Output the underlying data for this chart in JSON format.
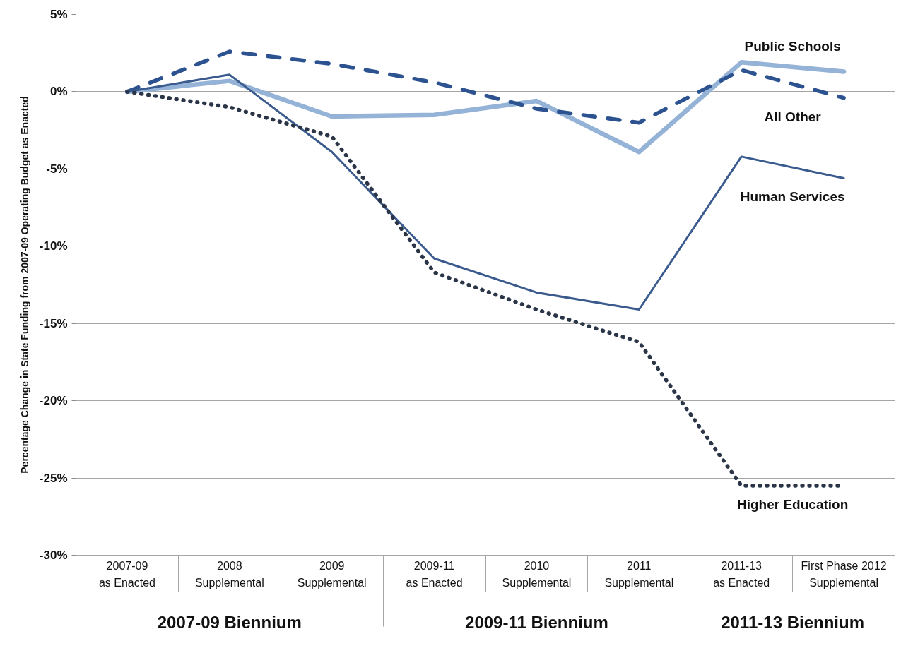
{
  "chart_data": {
    "type": "line",
    "ylabel": "Percentage Change in State Funding from 2007-09 Operating Budget as Enacted",
    "categories": [
      "2007-09\nas Enacted",
      "2008\nSupplemental",
      "2009\nSupplemental",
      "2009-11\nas Enacted",
      "2010\nSupplemental",
      "2011\nSupplemental",
      "2011-13\nas Enacted",
      "First Phase 2012\nSupplemental"
    ],
    "ylim": [
      -30,
      5
    ],
    "yticks": [
      {
        "value": 5,
        "label": "5%"
      },
      {
        "value": 0,
        "label": "0%"
      },
      {
        "value": -5,
        "label": "-5%"
      },
      {
        "value": -10,
        "label": "-10%"
      },
      {
        "value": -15,
        "label": "-15%"
      },
      {
        "value": -20,
        "label": "-20%"
      },
      {
        "value": -25,
        "label": "-25%"
      },
      {
        "value": -30,
        "label": "-30%"
      }
    ],
    "grid": "y",
    "series": [
      {
        "name": "Public Schools",
        "color": "#95b3d7",
        "line_style": "solid",
        "values": [
          0,
          0.7,
          -1.6,
          -1.5,
          -0.6,
          -3.9,
          1.9,
          1.3
        ]
      },
      {
        "name": "All Other",
        "color": "#2c5290",
        "line_style": "dashed",
        "values": [
          0,
          2.6,
          1.8,
          0.6,
          -1.1,
          -2.0,
          1.4,
          -0.4
        ]
      },
      {
        "name": "Human Services",
        "color": "#3b5b8f",
        "line_style": "solid",
        "values": [
          0,
          1.1,
          -3.9,
          -10.8,
          -13.0,
          -14.1,
          -4.2,
          -5.6
        ]
      },
      {
        "name": "Higher Education",
        "color": "#2b3548",
        "line_style": "dotted",
        "values": [
          0,
          -1.0,
          -2.9,
          -11.7,
          -14.1,
          -16.2,
          -25.5,
          -25.5
        ]
      }
    ],
    "annotations": [
      "2007-09 Biennium",
      "2009-11 Biennium",
      "2011-13 Biennium"
    ]
  }
}
